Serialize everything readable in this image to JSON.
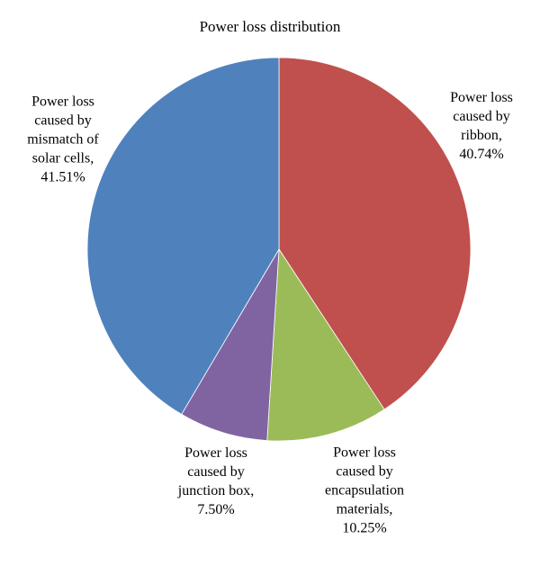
{
  "chart_data": {
    "type": "pie",
    "title": "Power loss distribution",
    "categories": [
      "Power loss caused by ribbon,",
      "Power loss caused by encapsulation materials,",
      "Power loss caused by junction box,",
      "Power loss caused by mismatch of solar cells,"
    ],
    "values": [
      40.74,
      10.25,
      7.5,
      41.51
    ],
    "value_labels": [
      "40.74%",
      "10.25%",
      "7.50%",
      "41.51%"
    ],
    "colors": [
      "#c0504d",
      "#9bbb59",
      "#8064a2",
      "#4f81bd"
    ]
  }
}
